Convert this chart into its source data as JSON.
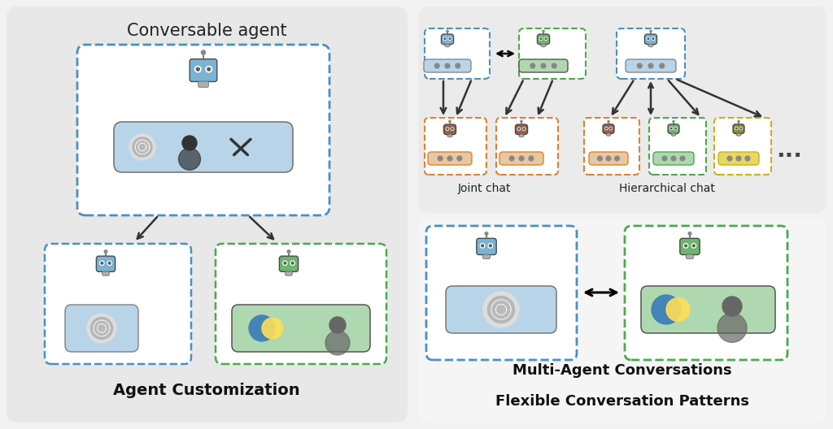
{
  "bg_color": "#f2f2f2",
  "panel_left_bg": "#e8e8e8",
  "panel_right_top_bg": "#f5f5f5",
  "panel_right_bot_bg": "#ebebeb",
  "white": "#ffffff",
  "title_conv": "Conversable agent",
  "title_agent_cust": "Agent Customization",
  "title_multi": "Multi-Agent Conversations",
  "title_flex": "Flexible Conversation Patterns",
  "label_joint": "Joint chat",
  "label_hier": "Hierarchical chat",
  "blue_robot_body": "#7ab3d4",
  "blue_robot_head": "#5a9ec4",
  "green_robot_body": "#6db56d",
  "green_robot_head": "#5aa55a",
  "brown_robot": "#9b6040",
  "olive_robot": "#8a8a30",
  "blue_border": "#4a90c4",
  "green_border": "#4aaa4a",
  "orange_border": "#e08030",
  "yellow_border": "#c8b020",
  "tool_blue_bg": "#b8d4e8",
  "tool_green_bg": "#b0d8b0",
  "tool_peach_bg": "#e8c8a0",
  "tool_yellow_bg": "#e8d860",
  "openai_gray": "#999999",
  "python_blue": "#4584b6",
  "python_yellow": "#ffde57",
  "person_gray": "#666666",
  "arrow_color": "#333333",
  "text_dark": "#222222",
  "text_bold": "#111111"
}
